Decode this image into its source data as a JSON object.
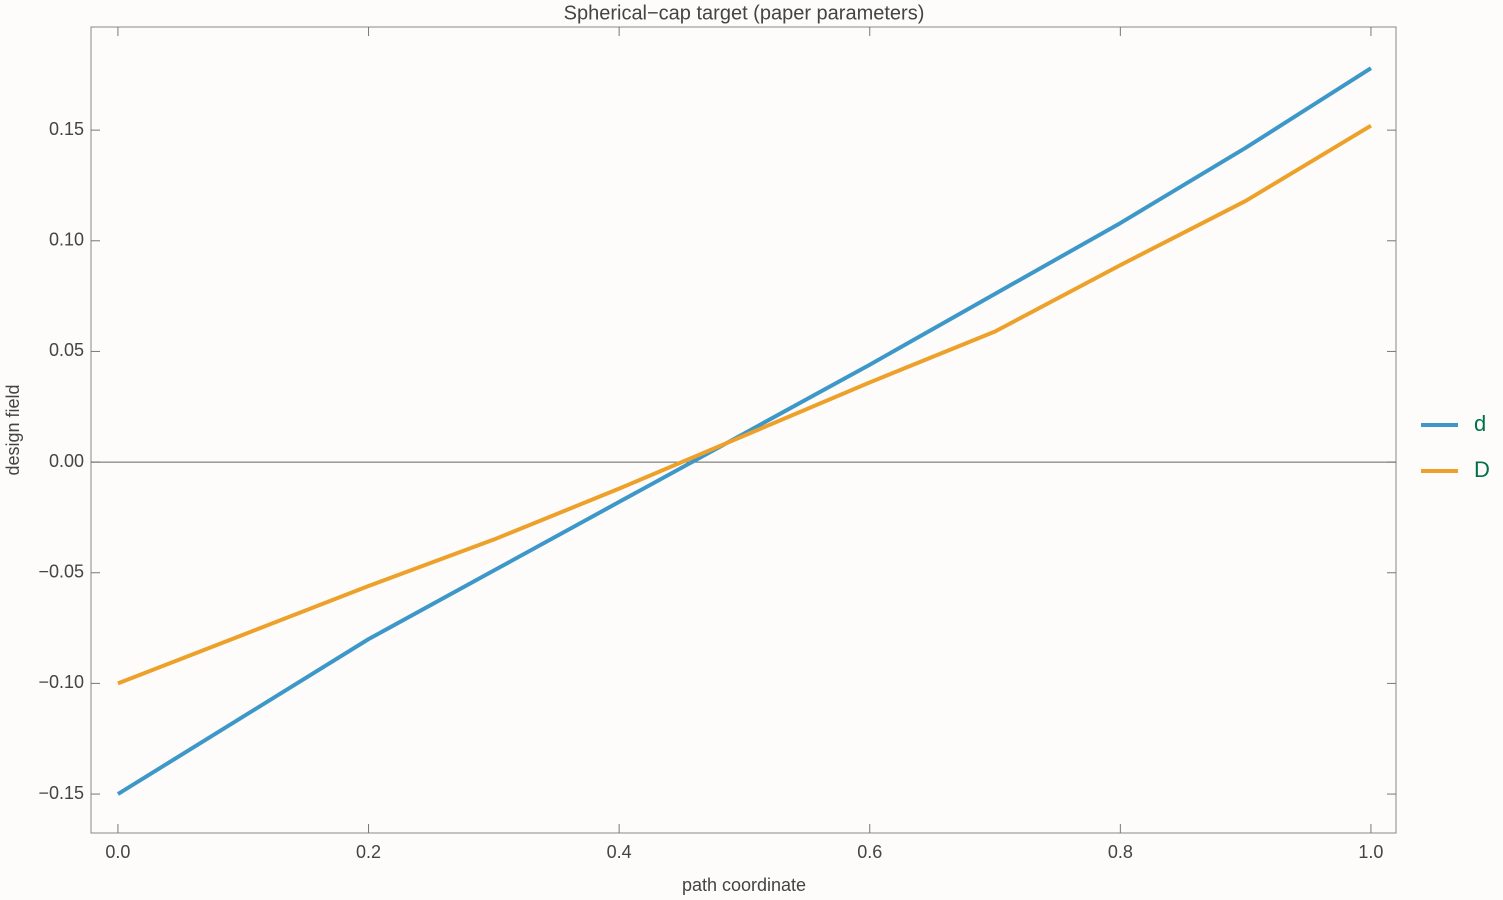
{
  "chart_data": {
    "type": "line",
    "title": "Spherical−cap target (paper parameters)",
    "x_label": "path coordinate",
    "y_label": "design field",
    "x": [
      0,
      0.1,
      0.2,
      0.3,
      0.4,
      0.5,
      0.6,
      0.7,
      0.8,
      0.9,
      1
    ],
    "series": [
      {
        "name": "d",
        "color": "#3d98c9",
        "values": [
          -0.15,
          -0.115,
          -0.08,
          -0.049,
          -0.018,
          0.013,
          0.044,
          0.076,
          0.108,
          0.142,
          0.178
        ]
      },
      {
        "name": "D",
        "color": "#eda12a",
        "values": [
          -0.1,
          -0.078,
          -0.056,
          -0.035,
          -0.012,
          0.012,
          0.036,
          0.059,
          0.089,
          0.118,
          0.152
        ]
      }
    ],
    "xlim": [
      -0.0215,
      1.02
    ],
    "ylim": [
      -0.1676,
      0.1966
    ],
    "xticks": [
      {
        "value": 0,
        "label": "0.0"
      },
      0.2,
      0.4,
      0.6,
      0.8,
      {
        "value": 1,
        "label": "1.0"
      }
    ],
    "yticks": [
      {
        "value": -0.15,
        "label": "−0.15"
      },
      {
        "value": -0.1,
        "label": "−0.10"
      },
      {
        "value": -0.05,
        "label": "−0.05"
      },
      {
        "value": 0,
        "label": "0.00"
      },
      0.05,
      {
        "value": 0.1,
        "label": "0.10"
      },
      0.15
    ],
    "legend": "right"
  }
}
